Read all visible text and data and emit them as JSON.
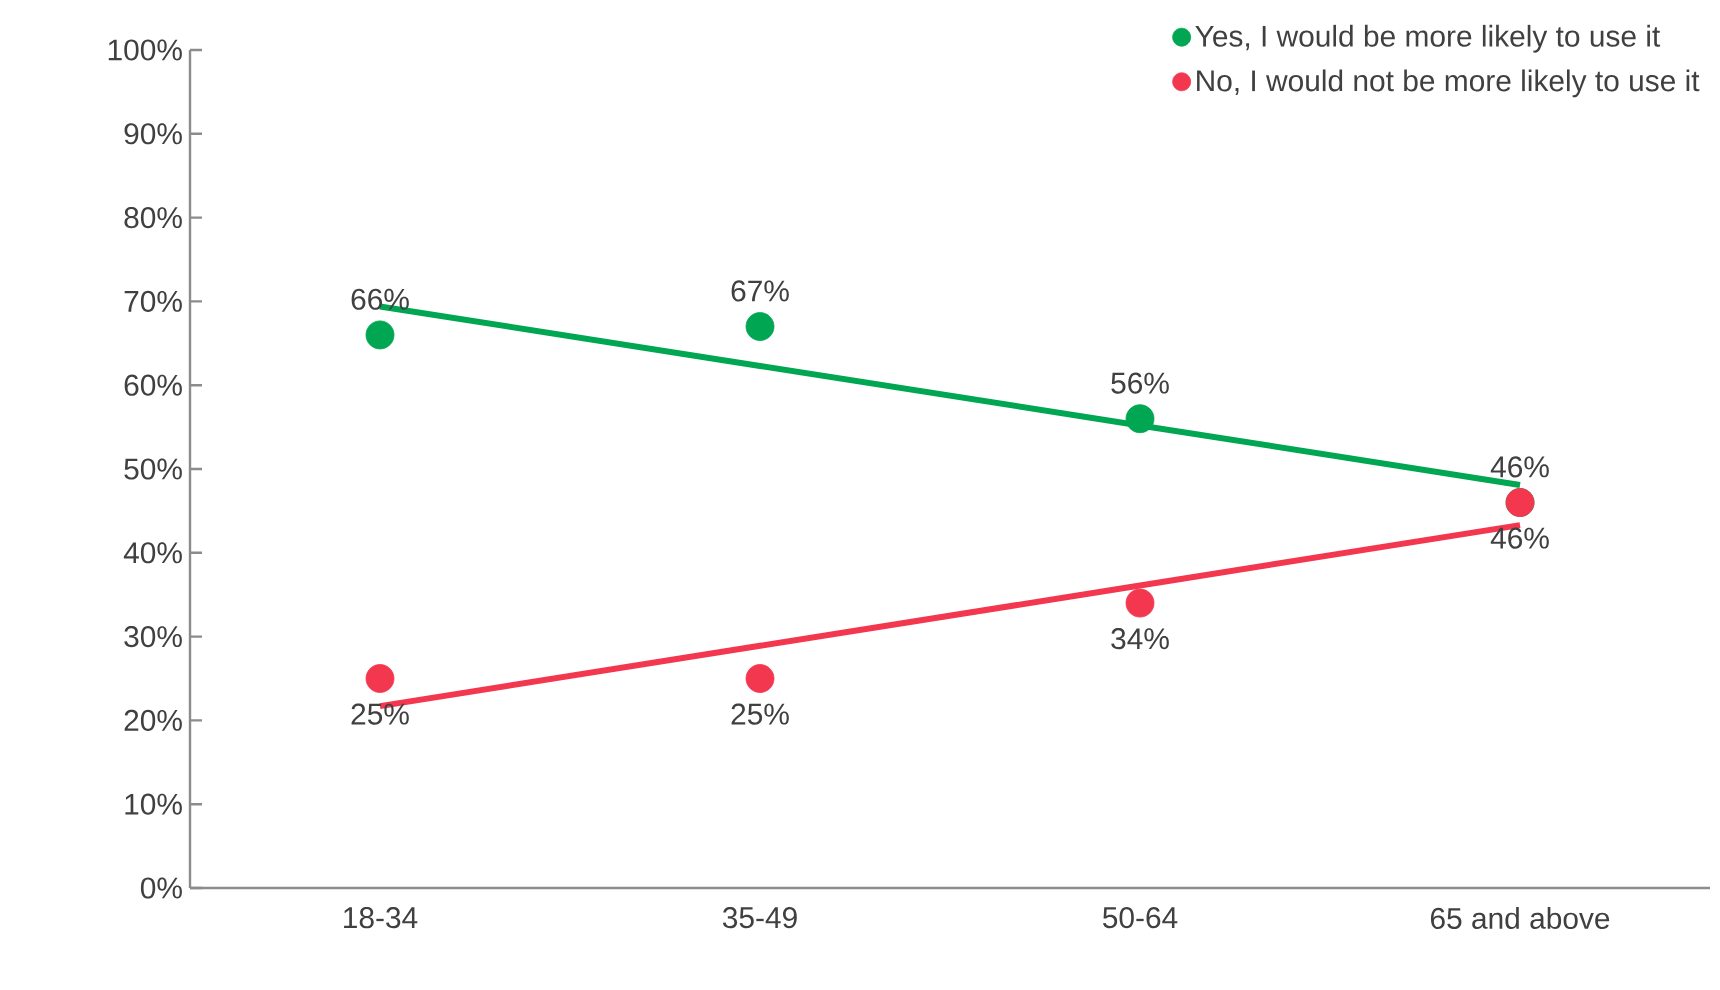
{
  "chart_data": {
    "type": "scatter",
    "categories": [
      "18-34",
      "35-49",
      "50-64",
      "65 and above"
    ],
    "series": [
      {
        "name": "Yes, I would be more likely to use it",
        "color": "#00a651",
        "values": [
          66,
          67,
          56,
          46
        ],
        "value_labels": [
          "66%",
          "67%",
          "56%",
          "46%"
        ]
      },
      {
        "name": "No, I would not be more likely to use it",
        "color": "#f2374f",
        "values": [
          25,
          25,
          34,
          46
        ],
        "value_labels": [
          "25%",
          "25%",
          "34%",
          "46%"
        ]
      },
      {
        "type": "line",
        "marker": "none",
        "color": "#00a651",
        "values": [
          69.4,
          62.3,
          55.2,
          48.1
        ]
      },
      {
        "type": "line",
        "marker": "none",
        "color": "#f2374f",
        "values": [
          21.7,
          28.9,
          36.1,
          43.3
        ]
      }
    ],
    "ylim": [
      0,
      100
    ],
    "yticks": [
      {
        "value": 0,
        "label": "0%"
      },
      {
        "value": 10,
        "label": "10%"
      },
      {
        "value": 20,
        "label": "20%"
      },
      {
        "value": 30,
        "label": "30%"
      },
      {
        "value": 40,
        "label": "40%"
      },
      {
        "value": 50,
        "label": "50%"
      },
      {
        "value": 60,
        "label": "60%"
      },
      {
        "value": 70,
        "label": "70%"
      },
      {
        "value": 80,
        "label": "80%"
      },
      {
        "value": 90,
        "label": "90%"
      },
      {
        "value": 100,
        "label": "100%"
      }
    ],
    "grid": false,
    "legend": "top right",
    "line_style": "solid"
  }
}
